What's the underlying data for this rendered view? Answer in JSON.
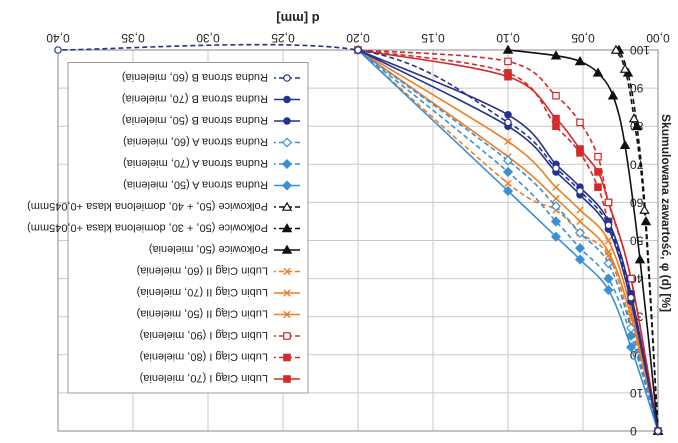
{
  "chart_data": {
    "type": "line",
    "xlabel": "d [mm]",
    "ylabel": "Skumulowana zawartość, φ (d) [%]",
    "x_ticks": [
      "0,00",
      "0,05",
      "0,10",
      "0,15",
      "0,20",
      "0,25",
      "0,30",
      "0,35",
      "0,40"
    ],
    "y_ticks": [
      "0",
      "10",
      "20",
      "30",
      "40",
      "50",
      "60",
      "70",
      "80",
      "90",
      "100"
    ],
    "xlim": [
      0,
      0.4
    ],
    "ylim": [
      0,
      100
    ],
    "grid": true,
    "legend_position": "right",
    "series": [
      {
        "name": "Lubin Ciąg I (70, mielenia)",
        "color": "#d42a2a",
        "dash": "solid",
        "marker": "square-filled",
        "x": [
          0,
          0.018,
          0.033,
          0.04,
          0.052,
          0.068,
          0.1,
          0.2
        ],
        "y": [
          0,
          40,
          60,
          68,
          74,
          82,
          93,
          100
        ]
      },
      {
        "name": "Lubin Ciąg I (80, mielenia)",
        "color": "#d42a2a",
        "dash": "dash",
        "marker": "square-filled",
        "x": [
          0,
          0.018,
          0.033,
          0.04,
          0.052,
          0.068,
          0.1,
          0.2
        ],
        "y": [
          0,
          36,
          55,
          64,
          73,
          80,
          94,
          100
        ]
      },
      {
        "name": "Lubin Ciąg I (90, mielenia)",
        "color": "#d42a2a",
        "dash": "dash",
        "marker": "square-open",
        "x": [
          0,
          0.018,
          0.033,
          0.04,
          0.052,
          0.068,
          0.1,
          0.2
        ],
        "y": [
          0,
          40,
          60,
          72,
          81,
          88,
          97,
          100
        ]
      },
      {
        "name": "Lubin Ciąg II (50, mielenia)",
        "color": "#ee7d22",
        "dash": "solid",
        "marker": "x",
        "x": [
          0,
          0.018,
          0.033,
          0.052,
          0.068,
          0.1,
          0.2
        ],
        "y": [
          0,
          32,
          50,
          58,
          64,
          76,
          100
        ]
      },
      {
        "name": "Lubin Ciąg II (70, mielenia)",
        "color": "#ee7d22",
        "dash": "solid",
        "marker": "x",
        "x": [
          0,
          0.018,
          0.033,
          0.052,
          0.068,
          0.1,
          0.2
        ],
        "y": [
          0,
          30,
          47,
          55,
          61,
          72,
          100
        ]
      },
      {
        "name": "Lubin Ciąg II (60, mielenia)",
        "color": "#ee7d22",
        "dash": "dash",
        "marker": "x",
        "x": [
          0,
          0.018,
          0.033,
          0.052,
          0.068,
          0.1,
          0.2
        ],
        "y": [
          0,
          28,
          46,
          52,
          58,
          65,
          100
        ]
      },
      {
        "name": "Polkowice (50, mielenia)",
        "color": "#111111",
        "dash": "solid",
        "marker": "triangle-down-filled",
        "x": [
          0,
          0.012,
          0.022,
          0.03,
          0.04,
          0.052,
          0.068,
          0.1
        ],
        "y": [
          0,
          45,
          75,
          88,
          94,
          97,
          98.5,
          100
        ]
      },
      {
        "name": "Polkowice (50, + 30, domielona klasa +0,045mm)",
        "color": "#111111",
        "dash": "dash",
        "marker": "triangle-down-filled",
        "x": [
          0,
          0.008,
          0.014,
          0.02,
          0.026
        ],
        "y": [
          0,
          55,
          80,
          94,
          100
        ]
      },
      {
        "name": "Polkowice (50, + 40, domielona klasa +0,045mm)",
        "color": "#111111",
        "dash": "dash",
        "marker": "triangle-down-open",
        "x": [
          0,
          0.009,
          0.016,
          0.022,
          0.028
        ],
        "y": [
          0,
          58,
          82,
          95,
          100
        ]
      },
      {
        "name": "Rudna strona A (50, mielenia)",
        "color": "#3b8fd4",
        "dash": "solid",
        "marker": "diamond-filled",
        "x": [
          0,
          0.018,
          0.033,
          0.052,
          0.068,
          0.1,
          0.2
        ],
        "y": [
          0,
          22,
          37,
          45,
          51,
          63,
          100
        ]
      },
      {
        "name": "Rudna strona A (70, mielenia)",
        "color": "#3b8fd4",
        "dash": "dash",
        "marker": "diamond-filled",
        "x": [
          0,
          0.018,
          0.033,
          0.052,
          0.068,
          0.1,
          0.2
        ],
        "y": [
          0,
          25,
          40,
          48,
          55,
          68,
          100
        ]
      },
      {
        "name": "Rudna strona A (60, mielenia)",
        "color": "#3b8fd4",
        "dash": "dash",
        "marker": "diamond-open",
        "x": [
          0,
          0.018,
          0.033,
          0.052,
          0.068,
          0.1,
          0.2
        ],
        "y": [
          0,
          27,
          44,
          52,
          59,
          71,
          100
        ]
      },
      {
        "name": "Rudna strona B (50, mielenia)",
        "color": "#24338f",
        "dash": "solid",
        "marker": "circle-filled",
        "x": [
          0,
          0.018,
          0.033,
          0.052,
          0.068,
          0.1,
          0.2
        ],
        "y": [
          0,
          34,
          53,
          62,
          68,
          80,
          100
        ]
      },
      {
        "name": "Rudna strona B (70, mielenia)",
        "color": "#24338f",
        "dash": "solid",
        "marker": "circle-filled",
        "x": [
          0,
          0.018,
          0.033,
          0.052,
          0.068,
          0.1,
          0.2
        ],
        "y": [
          0,
          36,
          55,
          64,
          70,
          83,
          100
        ]
      },
      {
        "name": "Rudna strona B (60, mielenia)",
        "color": "#24338f",
        "dash": "dash",
        "marker": "circle-open",
        "x": [
          0,
          0.018,
          0.033,
          0.052,
          0.068,
          0.1,
          0.2,
          0.4
        ],
        "y": [
          0,
          35,
          54,
          63,
          69,
          81,
          100,
          100
        ]
      }
    ]
  }
}
